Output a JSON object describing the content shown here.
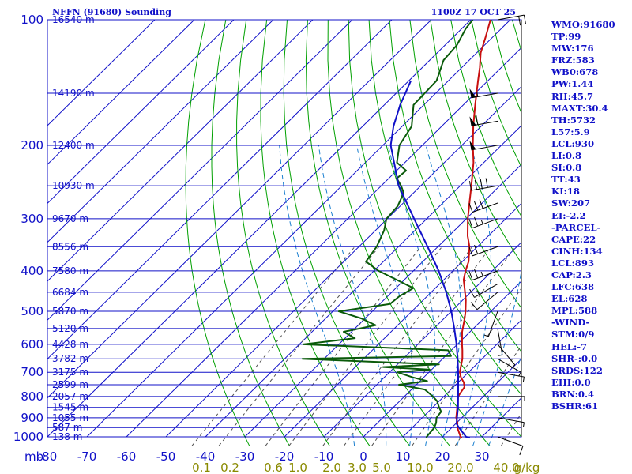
{
  "header": {
    "title": "NFFN (91680) Sounding",
    "time": "1100Z 17 OCT 25"
  },
  "indices": [
    "WMO:91680",
    "TP:99",
    "MW:176",
    "FRZ:583",
    "WB0:678",
    "PW:1.44",
    "RH:45.7",
    "MAXT:30.4",
    "TH:5732",
    "L57:5.9",
    "LCL:930",
    "LI:0.8",
    "SI:0.8",
    "TT:43",
    "KI:18",
    "SW:207",
    "EI:-2.2",
    "-PARCEL-",
    "CAPE:22",
    "CINH:134",
    "LCL:893",
    "CAP:2.3",
    "LFC:638",
    "EL:628",
    "MPL:588",
    "-WIND-",
    "STM:0/9",
    "HEL:-7",
    "SHR-:0.0",
    "SRDS:122",
    "EHI:0.0",
    "BRN:0.4",
    "BSHR:61"
  ],
  "colors": {
    "isobar": "#1010c8",
    "isotherm": "#1010c8",
    "dry_adiabat": "#00a000",
    "moist_adiabat": "#1a7fd0",
    "mixing_ratio": "#505050",
    "temperature": "#c81010",
    "dewpoint": "#0a5a0a",
    "parcel": "#1010c8",
    "mix_label": "#8a8a00"
  },
  "chart_data": {
    "type": "line",
    "title": "NFFN (91680) Sounding",
    "x_unit": "°C",
    "y_unit": "mb",
    "y_scale": "log-pressure",
    "xlim": [
      -80,
      40
    ],
    "ylim": [
      1000,
      100
    ],
    "pressure_ticks": [
      100,
      200,
      300,
      400,
      500,
      600,
      700,
      800,
      900,
      1000
    ],
    "temperature_ticks": [
      -80,
      -70,
      -60,
      -50,
      -40,
      -30,
      -20,
      -10,
      0,
      10,
      20,
      30
    ],
    "temperature_tick_labels": [
      "-80",
      "-70",
      "-60",
      "-50",
      "-40",
      "-30",
      "-20",
      "-10",
      "0",
      "10",
      "20",
      "30"
    ],
    "y_axis_label": "mb",
    "height_labels": [
      {
        "p": 100,
        "label": "16540 m"
      },
      {
        "p": 150,
        "label": "14190 m"
      },
      {
        "p": 200,
        "label": "12400 m"
      },
      {
        "p": 250,
        "label": "10930 m"
      },
      {
        "p": 300,
        "label": "9670 m"
      },
      {
        "p": 350,
        "label": "8556 m"
      },
      {
        "p": 400,
        "label": "7580 m"
      },
      {
        "p": 450,
        "label": "6684 m"
      },
      {
        "p": 500,
        "label": "5870 m"
      },
      {
        "p": 550,
        "label": "5120 m"
      },
      {
        "p": 600,
        "label": "4428 m"
      },
      {
        "p": 650,
        "label": "3782 m"
      },
      {
        "p": 700,
        "label": "3175 m"
      },
      {
        "p": 750,
        "label": "2599 m"
      },
      {
        "p": 800,
        "label": "2057 m"
      },
      {
        "p": 850,
        "label": "1545 m"
      },
      {
        "p": 900,
        "label": "1055 m"
      },
      {
        "p": 950,
        "label": "587 m"
      },
      {
        "p": 1000,
        "label": "138 m"
      }
    ],
    "mixing_ratio_labels": [
      "0.1",
      "0.2",
      "0.6",
      "1.0",
      "2.0",
      "3.0",
      "5.0",
      "10.0",
      "20.0",
      "40.0",
      "g/kg"
    ],
    "mixing_ratio_values": [
      0.1,
      0.2,
      0.6,
      1.0,
      2.0,
      3.0,
      5.0,
      10.0,
      20.0,
      40.0
    ],
    "series": [
      {
        "key": "temperature",
        "points": [
          [
            1005,
            25.2
          ],
          [
            1000,
            24.6
          ],
          [
            950,
            21.4
          ],
          [
            925,
            20.2
          ],
          [
            900,
            18.6
          ],
          [
            850,
            16.2
          ],
          [
            800,
            13.6
          ],
          [
            780,
            13.2
          ],
          [
            760,
            12.8
          ],
          [
            740,
            11.4
          ],
          [
            720,
            9.4
          ],
          [
            700,
            7.8
          ],
          [
            650,
            5.0
          ],
          [
            620,
            2.8
          ],
          [
            600,
            1.2
          ],
          [
            560,
            -2.0
          ],
          [
            520,
            -4.8
          ],
          [
            500,
            -6.4
          ],
          [
            470,
            -9.2
          ],
          [
            440,
            -12.6
          ],
          [
            420,
            -15.0
          ],
          [
            400,
            -16.8
          ],
          [
            380,
            -18.4
          ],
          [
            350,
            -22.0
          ],
          [
            330,
            -25.2
          ],
          [
            300,
            -29.6
          ],
          [
            270,
            -34.0
          ],
          [
            250,
            -37.2
          ],
          [
            220,
            -42.6
          ],
          [
            200,
            -47.2
          ],
          [
            180,
            -52.0
          ],
          [
            160,
            -57.0
          ],
          [
            140,
            -62.5
          ],
          [
            130,
            -65.5
          ],
          [
            120,
            -69.0
          ],
          [
            110,
            -71.8
          ],
          [
            100,
            -75.0
          ]
        ]
      },
      {
        "key": "dewpoint",
        "points": [
          [
            1005,
            16.2
          ],
          [
            1000,
            16.0
          ],
          [
            950,
            15.6
          ],
          [
            925,
            14.8
          ],
          [
            900,
            13.6
          ],
          [
            870,
            13.2
          ],
          [
            850,
            11.6
          ],
          [
            820,
            9.4
          ],
          [
            800,
            7.2
          ],
          [
            770,
            3.4
          ],
          [
            750,
            -4.4
          ],
          [
            735,
            1.8
          ],
          [
            720,
            -2.8
          ],
          [
            700,
            -8.0
          ],
          [
            690,
            -0.5
          ],
          [
            680,
            -13.0
          ],
          [
            670,
            0.5
          ],
          [
            660,
            -18.0
          ],
          [
            650,
            -35.5
          ],
          [
            640,
            1.4
          ],
          [
            620,
            -0.8
          ],
          [
            600,
            -39.0
          ],
          [
            580,
            -27.5
          ],
          [
            560,
            -32.0
          ],
          [
            540,
            -25.6
          ],
          [
            520,
            -31.0
          ],
          [
            500,
            -38.5
          ],
          [
            480,
            -27.4
          ],
          [
            460,
            -27.0
          ],
          [
            440,
            -25.6
          ],
          [
            420,
            -32.0
          ],
          [
            400,
            -38.8
          ],
          [
            380,
            -44.4
          ],
          [
            350,
            -45.5
          ],
          [
            320,
            -47.8
          ],
          [
            300,
            -50.2
          ],
          [
            280,
            -50.6
          ],
          [
            260,
            -52.5
          ],
          [
            250,
            -55.0
          ],
          [
            240,
            -58.0
          ],
          [
            230,
            -57.6
          ],
          [
            220,
            -62.0
          ],
          [
            200,
            -65.8
          ],
          [
            180,
            -67.6
          ],
          [
            160,
            -72.6
          ],
          [
            140,
            -73.0
          ],
          [
            125,
            -76.5
          ],
          [
            115,
            -77.0
          ],
          [
            105,
            -79.0
          ],
          [
            100,
            -79.5
          ]
        ]
      },
      {
        "key": "parcel",
        "points": [
          [
            1005,
            27.2
          ],
          [
            1000,
            26.0
          ],
          [
            950,
            21.8
          ],
          [
            930,
            20.2
          ],
          [
            900,
            18.8
          ],
          [
            850,
            16.4
          ],
          [
            800,
            13.6
          ],
          [
            750,
            10.6
          ],
          [
            700,
            7.4
          ],
          [
            650,
            3.8
          ],
          [
            600,
            -0.2
          ],
          [
            550,
            -4.8
          ],
          [
            500,
            -10.0
          ],
          [
            450,
            -16.2
          ],
          [
            400,
            -23.6
          ],
          [
            350,
            -32.6
          ],
          [
            300,
            -43.2
          ],
          [
            250,
            -55.6
          ],
          [
            200,
            -68.0
          ],
          [
            180,
            -72.2
          ],
          [
            160,
            -76.0
          ],
          [
            140,
            -79.5
          ]
        ]
      }
    ],
    "wind_barbs": [
      {
        "p": 100,
        "spd": 20,
        "dir": 80
      },
      {
        "p": 150,
        "spd": 55,
        "dir": 260
      },
      {
        "p": 175,
        "spd": 60,
        "dir": 260
      },
      {
        "p": 200,
        "spd": 50,
        "dir": 260
      },
      {
        "p": 250,
        "spd": 40,
        "dir": 260
      },
      {
        "p": 275,
        "spd": 30,
        "dir": 250
      },
      {
        "p": 300,
        "spd": 25,
        "dir": 250
      },
      {
        "p": 350,
        "spd": 20,
        "dir": 250
      },
      {
        "p": 400,
        "spd": 25,
        "dir": 250
      },
      {
        "p": 430,
        "spd": 15,
        "dir": 240
      },
      {
        "p": 450,
        "spd": 10,
        "dir": 230
      },
      {
        "p": 500,
        "spd": 8,
        "dir": 200
      },
      {
        "p": 550,
        "spd": 6,
        "dir": 170
      },
      {
        "p": 600,
        "spd": 5,
        "dir": 140
      },
      {
        "p": 650,
        "spd": 5,
        "dir": 120
      },
      {
        "p": 700,
        "spd": 5,
        "dir": 100
      },
      {
        "p": 800,
        "spd": 5,
        "dir": 90
      },
      {
        "p": 900,
        "spd": 8,
        "dir": 100
      },
      {
        "p": 1000,
        "spd": 10,
        "dir": 110
      }
    ]
  }
}
